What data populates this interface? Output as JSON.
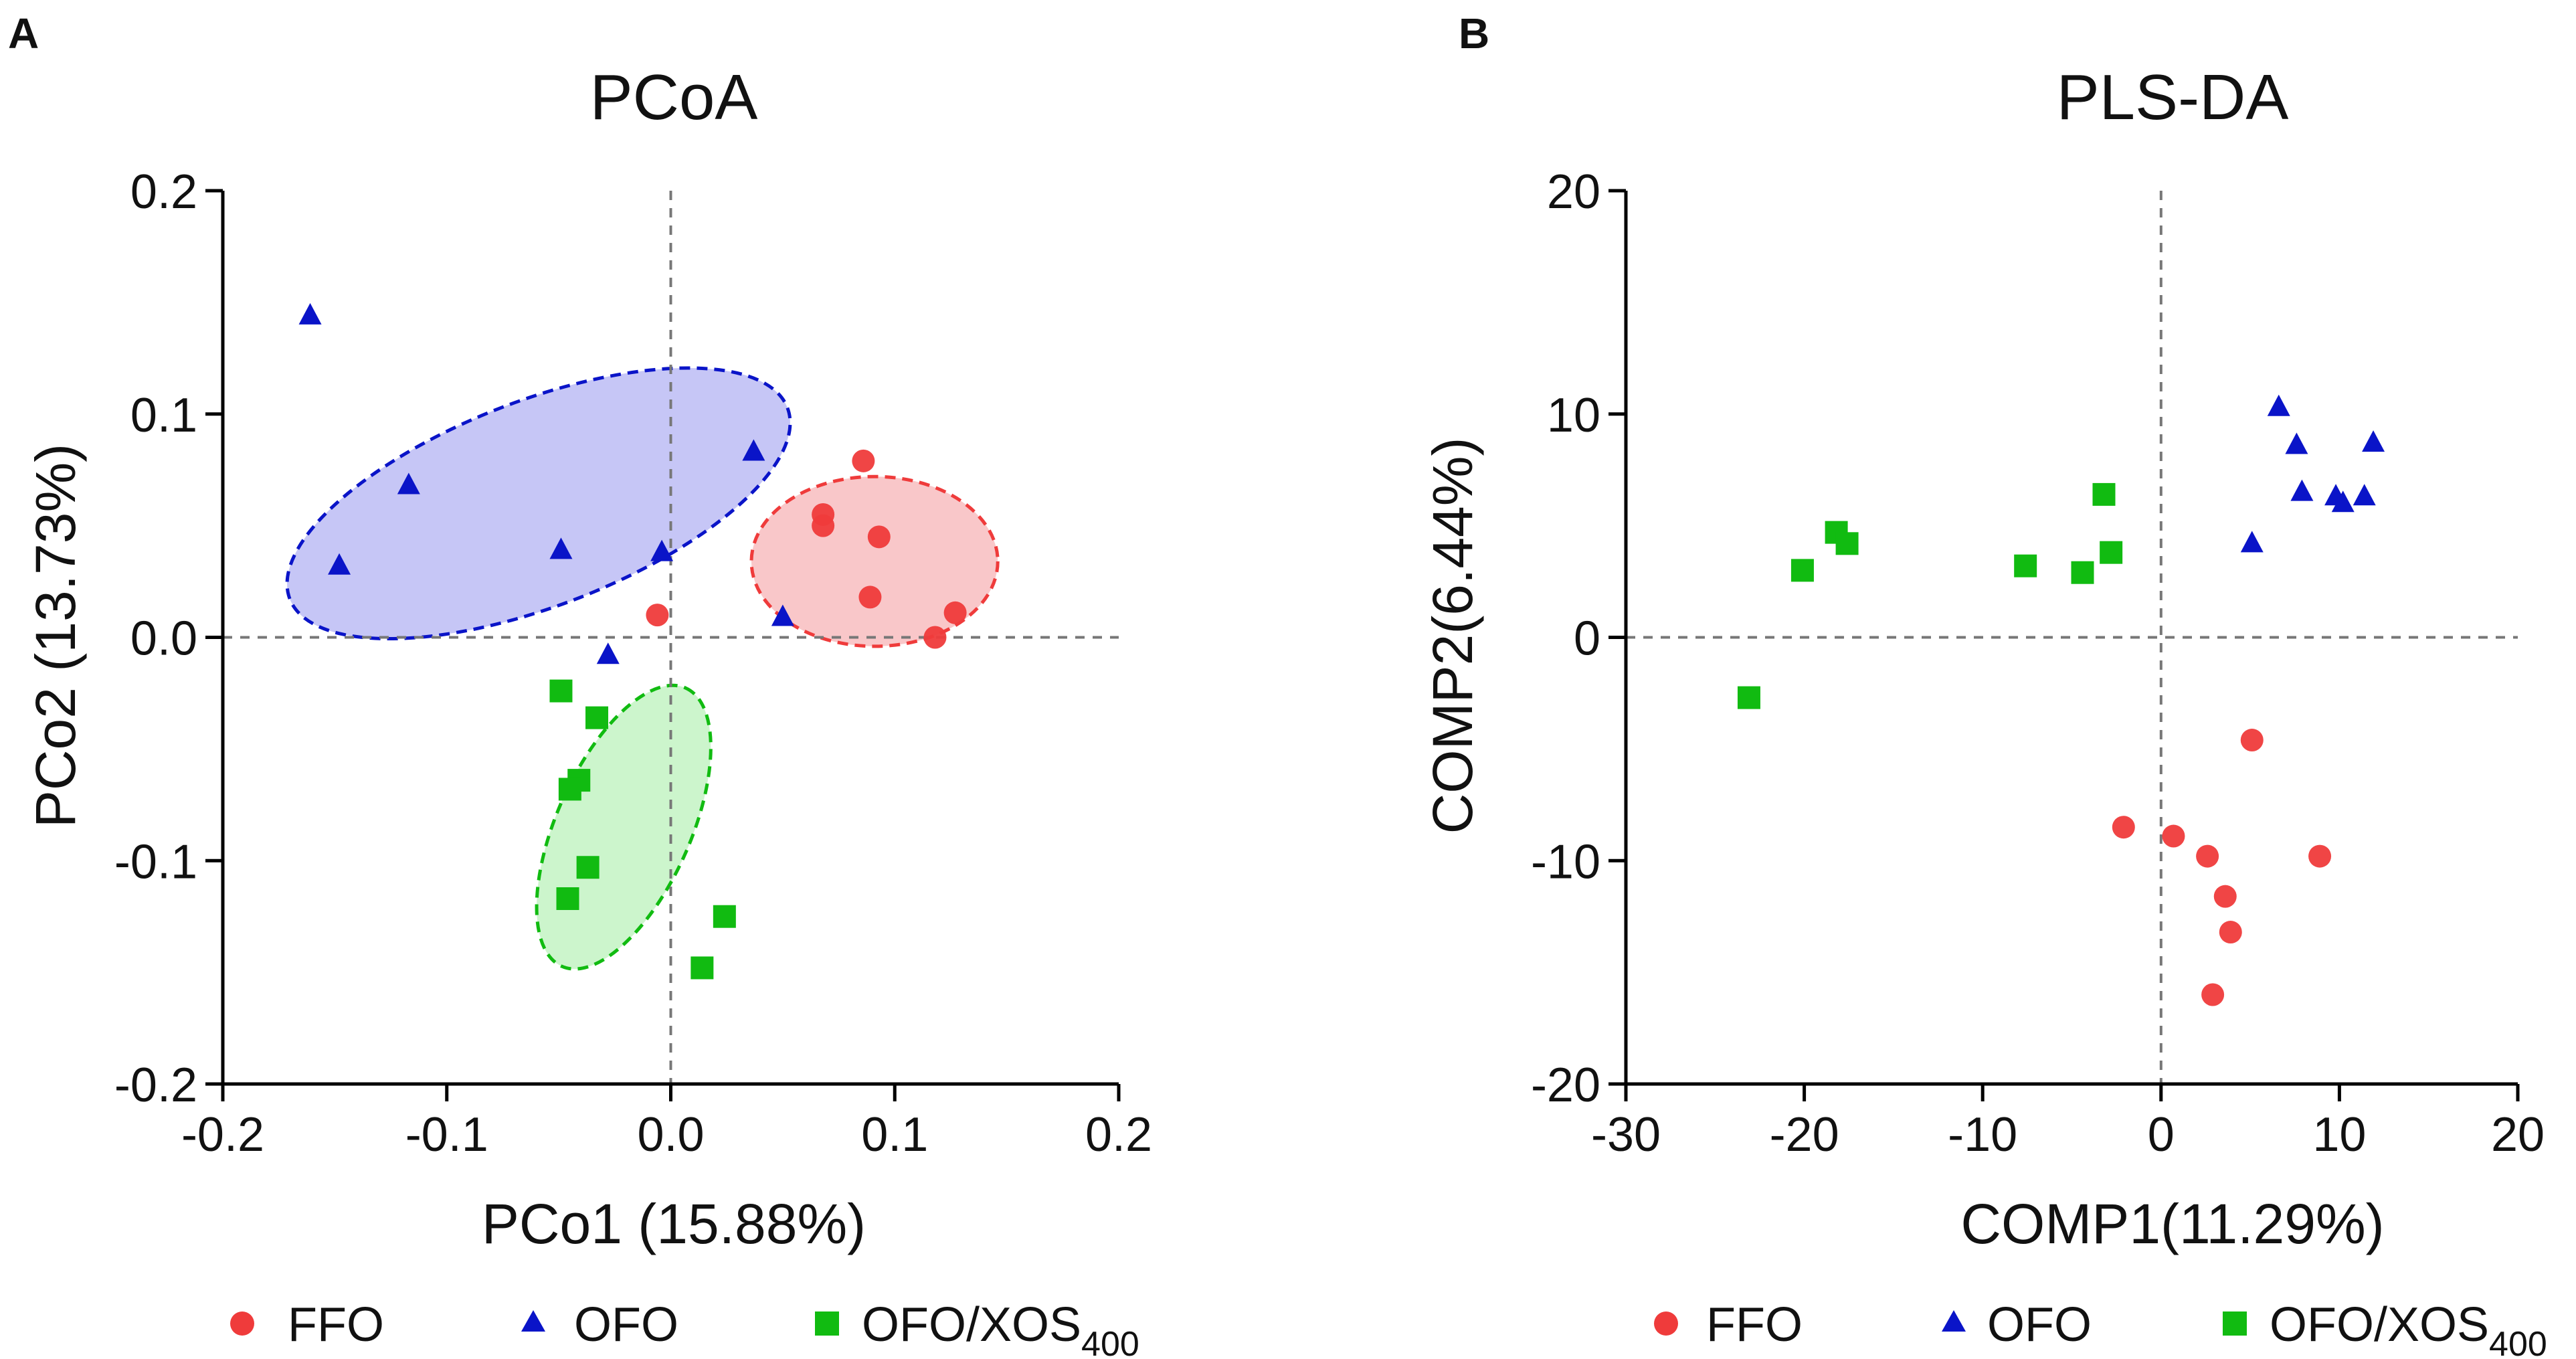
{
  "colors": {
    "ffo": "#ef3b3b",
    "ofo": "#0a14c8",
    "ofoxos": "#11bb11",
    "ellipse_ffo_fill": "#f7b9bb",
    "ellipse_ofo_fill": "#b8b8f4",
    "ellipse_ofoxos_fill": "#bff2bf"
  },
  "legend": {
    "ffo": "FFO",
    "ofo": "OFO",
    "ofoxos_main": "OFO/XOS",
    "ofoxos_sub": "400"
  },
  "chart_data": [
    {
      "panel": "A",
      "type": "scatter",
      "title": "PCoA",
      "xlabel": "PCo1 (15.88%)",
      "ylabel": "PCo2 (13.73%)",
      "xlim": [
        -0.2,
        0.2
      ],
      "ylim": [
        -0.2,
        0.2
      ],
      "xticks": [
        -0.2,
        -0.1,
        0.0,
        0.1,
        0.2
      ],
      "yticks": [
        -0.2,
        -0.1,
        0.0,
        0.1,
        0.2
      ],
      "xtick_labels": [
        "-0.2",
        "-0.1",
        "0.0",
        "0.1",
        "0.2"
      ],
      "ytick_labels": [
        "-0.2",
        "-0.1",
        "0.0",
        "0.1",
        "0.2"
      ],
      "zero_lines": true,
      "legend_position": "bottom",
      "series": [
        {
          "name": "FFO",
          "marker": "circle",
          "key": "ffo",
          "x": [
            0.086,
            0.068,
            0.068,
            0.093,
            0.089,
            0.127,
            0.118,
            -0.006
          ],
          "y": [
            0.079,
            0.055,
            0.05,
            0.045,
            0.018,
            0.011,
            0.0,
            0.01
          ]
        },
        {
          "name": "OFO",
          "marker": "triangle",
          "key": "ofo",
          "x": [
            -0.161,
            -0.117,
            -0.148,
            -0.049,
            -0.004,
            0.037,
            0.05,
            -0.028
          ],
          "y": [
            0.144,
            0.068,
            0.032,
            0.039,
            0.038,
            0.083,
            0.009,
            -0.008
          ]
        },
        {
          "name": "OFO/XOS400",
          "marker": "square",
          "key": "ofoxos",
          "x": [
            -0.049,
            -0.033,
            -0.041,
            -0.045,
            -0.037,
            -0.046,
            0.024,
            0.014
          ],
          "y": [
            -0.024,
            -0.036,
            -0.064,
            -0.068,
            -0.103,
            -0.117,
            -0.125,
            -0.148
          ]
        }
      ],
      "ellipses": [
        {
          "group": "OFO",
          "key": "ofo",
          "cx": -0.059,
          "cy": 0.06,
          "rx": 0.119,
          "ry": 0.046,
          "angle_deg": 21
        },
        {
          "group": "FFO",
          "key": "ffo",
          "cx": 0.091,
          "cy": 0.034,
          "rx": 0.055,
          "ry": 0.038,
          "angle_deg": 0
        },
        {
          "group": "OFO/XOS400",
          "key": "ofoxos",
          "cx": -0.021,
          "cy": -0.085,
          "rx": 0.068,
          "ry": 0.03,
          "angle_deg": 66
        }
      ]
    },
    {
      "panel": "B",
      "type": "scatter",
      "title": "PLS-DA",
      "xlabel": "COMP1(11.29%)",
      "ylabel": "COMP2(6.44%)",
      "xlim": [
        -30,
        20
      ],
      "ylim": [
        -20,
        20
      ],
      "xticks": [
        -30,
        -20,
        -10,
        0,
        10,
        20
      ],
      "yticks": [
        -20,
        -10,
        0,
        10,
        20
      ],
      "xtick_labels": [
        "-30",
        "-20",
        "-10",
        "0",
        "10",
        "20"
      ],
      "ytick_labels": [
        "-20",
        "-10",
        "0",
        "10",
        "20"
      ],
      "zero_lines": true,
      "legend_position": "bottom",
      "series": [
        {
          "name": "FFO",
          "marker": "circle",
          "key": "ffo",
          "x": [
            5.1,
            -2.1,
            0.7,
            2.6,
            8.9,
            3.6,
            3.9,
            2.9
          ],
          "y": [
            -4.6,
            -8.5,
            -8.9,
            -9.8,
            -9.8,
            -11.6,
            -13.2,
            -16.0
          ]
        },
        {
          "name": "OFO",
          "marker": "triangle",
          "key": "ofo",
          "x": [
            6.6,
            7.6,
            11.9,
            7.9,
            9.8,
            10.2,
            11.4,
            5.1
          ],
          "y": [
            10.3,
            8.6,
            8.7,
            6.5,
            6.3,
            6.0,
            6.3,
            4.2
          ]
        },
        {
          "name": "OFO/XOS400",
          "marker": "square",
          "key": "ofoxos",
          "x": [
            -3.2,
            -18.2,
            -17.6,
            -20.1,
            -7.6,
            -4.4,
            -2.8,
            -23.1
          ],
          "y": [
            6.4,
            4.7,
            4.2,
            3.0,
            3.2,
            2.9,
            3.8,
            -2.7
          ]
        }
      ]
    }
  ]
}
